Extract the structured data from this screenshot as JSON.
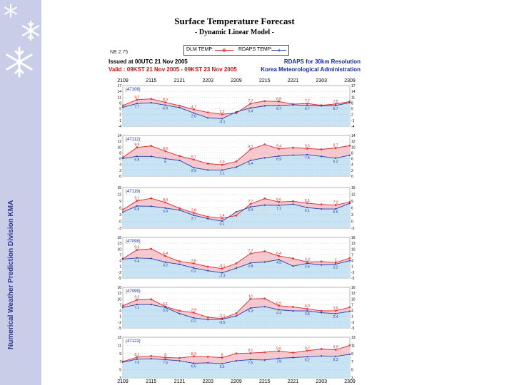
{
  "sidebar": {
    "caption": "Numerical Weather Prediction Division  KMA",
    "background": "#c9cde8",
    "snowflakes": [
      "snowflake-icon",
      "snowflake-icon",
      "snowflake-icon"
    ]
  },
  "header": {
    "title": "Surface Temperature Forecast",
    "subtitle": "- Dynamic Linear Model -",
    "legend_dlm": "DLM TEMP:",
    "legend_rdaps": "RDAPS TEMP:",
    "station_tag": "NB 2.75",
    "issued": "Issued at 00UTC 21 Nov 2005",
    "valid": "Valid : 09KST 21 Nov 2005 - 09KST 23 Nov 2005",
    "resolution": "RDAPS for 30km Resolution",
    "agency": "Korea Meteorological Administration"
  },
  "colors": {
    "dlm": "#d62828",
    "rdaps": "#2a3fa8",
    "warm_fill": "#f6c8cf",
    "cool_fill": "#c8e4f4"
  },
  "chart_data": [
    {
      "type": "line",
      "station": "(47108)",
      "x": [
        "2109",
        "2112",
        "2115",
        "2118",
        "2121",
        "2200",
        "2203",
        "2206",
        "2209",
        "2212",
        "2215",
        "2218",
        "2221",
        "2300",
        "2303",
        "2306",
        "2309"
      ],
      "y_left_ticks": [
        "17",
        "14",
        "11",
        "8",
        "5",
        "2",
        "-1",
        "-4"
      ],
      "y_right_ticks": [
        "17",
        "14",
        "11",
        "8",
        "5",
        "2",
        "-1",
        "-4"
      ],
      "ylim": [
        -4,
        17
      ],
      "series": [
        {
          "values": [
            6.7,
            9.7,
            10.1,
            8.3,
            6.6,
            4.7,
            3.1,
            2.2,
            2.8,
            7.7,
            9.0,
            8.8,
            7.4,
            7.7,
            6.8,
            7.5,
            8.7
          ]
        },
        {
          "values": [
            5.8,
            7.7,
            8.1,
            6.9,
            5.6,
            2.8,
            0.3,
            -0.1,
            3.4,
            5.4,
            6.5,
            6.7,
            7.0,
            6.7,
            6.5,
            6.7,
            8.2
          ]
        }
      ]
    },
    {
      "type": "line",
      "station": "(47112)",
      "x": [
        "2109",
        "2112",
        "2115",
        "2118",
        "2121",
        "2200",
        "2203",
        "2206",
        "2209",
        "2212",
        "2215",
        "2218",
        "2221",
        "2300",
        "2303",
        "2306",
        "2309"
      ],
      "y_left_ticks": [
        "14",
        "12",
        "10",
        "8",
        "6",
        "4",
        "2",
        "0"
      ],
      "y_right_ticks": [
        "14",
        "12",
        "10",
        "8",
        "6",
        "4",
        "2",
        "0"
      ],
      "ylim": [
        0,
        14
      ],
      "series": [
        {
          "values": [
            6.4,
            9.9,
            10.4,
            8.6,
            6.9,
            5.7,
            4.3,
            3.9,
            5.0,
            9.2,
            10.9,
            9.4,
            9.8,
            9.5,
            9.2,
            9.7,
            10.5
          ]
        },
        {
          "values": [
            6.1,
            6.8,
            6.8,
            6.0,
            5.4,
            2.9,
            2.1,
            2.1,
            3.1,
            5.4,
            6.3,
            6.9,
            7.2,
            7.4,
            6.8,
            6.2,
            7.2
          ]
        }
      ]
    },
    {
      "type": "line",
      "station": "(47119)",
      "x": [
        "2109",
        "2112",
        "2115",
        "2118",
        "2121",
        "2200",
        "2203",
        "2206",
        "2209",
        "2212",
        "2215",
        "2218",
        "2221",
        "2300",
        "2303",
        "2306",
        "2309"
      ],
      "y_left_ticks": [
        "15",
        "12",
        "9",
        "6",
        "3",
        "0",
        "-3"
      ],
      "y_right_ticks": [
        "15",
        "12",
        "9",
        "6",
        "3",
        "0",
        "-3"
      ],
      "ylim": [
        -3,
        15
      ],
      "series": [
        {
          "values": [
            5.2,
            9.1,
            10.2,
            8.4,
            5.8,
            3.8,
            2.1,
            1.4,
            2.6,
            7.7,
            10.1,
            8.6,
            8.9,
            8.1,
            7.5,
            7.2,
            8.6
          ]
        },
        {
          "values": [
            4.1,
            6.8,
            6.7,
            5.9,
            5.0,
            2.7,
            1.2,
            0.1,
            4.2,
            6.4,
            7.2,
            7.1,
            7.6,
            6.1,
            5.5,
            5.5,
            8.0
          ]
        }
      ]
    },
    {
      "type": "line",
      "station": "(47098)",
      "x": [
        "2109",
        "2112",
        "2115",
        "2118",
        "2121",
        "2200",
        "2203",
        "2206",
        "2209",
        "2212",
        "2215",
        "2218",
        "2221",
        "2300",
        "2303",
        "2306",
        "2309"
      ],
      "y_left_ticks": [
        "16",
        "13",
        "10",
        "7",
        "4",
        "1",
        "-2",
        "-5"
      ],
      "y_right_ticks": [
        "16",
        "13",
        "10",
        "7",
        "4",
        "1",
        "-2",
        "-5"
      ],
      "ylim": [
        -5,
        16
      ],
      "series": [
        {
          "values": [
            5.0,
            9.5,
            10.1,
            6.4,
            3.6,
            2.6,
            0.9,
            -0.1,
            2.6,
            7.7,
            8.8,
            6.4,
            5.1,
            3.3,
            3.5,
            3.0,
            5.3
          ]
        },
        {
          "values": [
            4.8,
            5.4,
            5.1,
            3.2,
            2.1,
            0.2,
            -1.2,
            -2.3,
            0.1,
            2.8,
            3.3,
            4.5,
            1.2,
            2.6,
            1.8,
            2.2,
            4.0
          ]
        }
      ]
    },
    {
      "type": "line",
      "station": "(47099)",
      "x": [
        "2109",
        "2112",
        "2115",
        "2118",
        "2121",
        "2200",
        "2203",
        "2206",
        "2209",
        "2212",
        "2215",
        "2218",
        "2221",
        "2300",
        "2303",
        "2306",
        "2309"
      ],
      "y_left_ticks": [
        "16",
        "13",
        "10",
        "7",
        "4",
        "1",
        "-2",
        "-5"
      ],
      "y_right_ticks": [
        "16",
        "13",
        "10",
        "7",
        "4",
        "1",
        "-2",
        "-5"
      ],
      "ylim": [
        -5,
        16
      ],
      "series": [
        {
          "values": [
            6.5,
            9.5,
            9.8,
            6.1,
            3.9,
            2.9,
            0.5,
            -0.1,
            2.6,
            10.0,
            10.2,
            6.5,
            5.9,
            4.9,
            3.8,
            3.9,
            5.7
          ]
        },
        {
          "values": [
            5.6,
            7.1,
            7.1,
            5.6,
            2.4,
            0.2,
            -0.7,
            -0.5,
            1.2,
            5.3,
            6.0,
            4.4,
            3.8,
            3.8,
            2.9,
            2.4,
            3.6
          ]
        }
      ]
    },
    {
      "type": "line",
      "station": "(47122)",
      "x": [
        "2109",
        "2112",
        "2115",
        "2118",
        "2121",
        "2200",
        "2203",
        "2206",
        "2209",
        "2212",
        "2215",
        "2218",
        "2221",
        "2300",
        "2303",
        "2306",
        "2309"
      ],
      "y_left_ticks": [
        "13",
        "11",
        "9",
        "7",
        "5",
        "3"
      ],
      "y_right_ticks": [
        "13",
        "11",
        "9",
        "7",
        "5",
        "3"
      ],
      "ylim": [
        3,
        13
      ],
      "series": [
        {
          "values": [
            7.0,
            8.1,
            8.4,
            8.0,
            7.9,
            8.3,
            8.2,
            8.0,
            9.0,
            9.1,
            9.3,
            9.6,
            9.2,
            9.7,
            10.1,
            9.9,
            11.0
          ]
        },
        {
          "values": [
            6.9,
            7.6,
            7.7,
            7.5,
            7.2,
            6.6,
            6.7,
            6.5,
            7.2,
            7.5,
            7.4,
            7.8,
            8.0,
            8.2,
            8.4,
            8.3,
            8.8
          ]
        }
      ]
    }
  ],
  "x_axis_labels": [
    "2109",
    "2115",
    "2121",
    "2203",
    "2209",
    "2215",
    "2221",
    "2303",
    "2309"
  ]
}
